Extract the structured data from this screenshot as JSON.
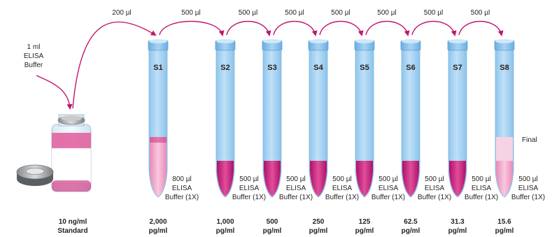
{
  "colors": {
    "arrow": "#c1166f",
    "tube_body": "#a9d4f3",
    "tube_cap": "#7ebbe6",
    "liquid": "#c81b7a",
    "liquid_light": "#ee9cc5",
    "final_pale": "#f6d3e2",
    "vial_label": "#f2b8d0"
  },
  "source": {
    "label_line1": "1 ml",
    "label_line2": "ELISA",
    "label_line3": "Buffer"
  },
  "standard": {
    "conc": "10 ng/ml",
    "name": "Standard"
  },
  "transfers": [
    "200 µl",
    "500 µl",
    "500 µl",
    "500 µl",
    "500 µl",
    "500 µl",
    "500 µl",
    "500 µl"
  ],
  "tubes": [
    {
      "label": "S1",
      "buffer_line1": "800 µl",
      "buffer_line2": "ELISA",
      "buffer_line3": "Buffer (1X)",
      "conc_value": "2,000",
      "conc_unit": "pg/ml"
    },
    {
      "label": "S2",
      "buffer_line1": "500 µl",
      "buffer_line2": "ELISA",
      "buffer_line3": "Buffer (1X)",
      "conc_value": "1,000",
      "conc_unit": "pg/ml"
    },
    {
      "label": "S3",
      "buffer_line1": "500 µl",
      "buffer_line2": "ELISA",
      "buffer_line3": "Buffer (1X)",
      "conc_value": "500",
      "conc_unit": "pg/ml"
    },
    {
      "label": "S4",
      "buffer_line1": "500 µl",
      "buffer_line2": "ELISA",
      "buffer_line3": "Buffer (1X)",
      "conc_value": "250",
      "conc_unit": "pg/ml"
    },
    {
      "label": "S5",
      "buffer_line1": "500 µl",
      "buffer_line2": "ELISA",
      "buffer_line3": "Buffer (1X)",
      "conc_value": "125",
      "conc_unit": "pg/ml"
    },
    {
      "label": "S6",
      "buffer_line1": "500 µl",
      "buffer_line2": "ELISA",
      "buffer_line3": "Buffer (1X)",
      "conc_value": "62.5",
      "conc_unit": "pg/ml"
    },
    {
      "label": "S7",
      "buffer_line1": "500 µl",
      "buffer_line2": "ELISA",
      "buffer_line3": "Buffer (1X)",
      "conc_value": "31.3",
      "conc_unit": "pg/ml"
    },
    {
      "label": "S8",
      "buffer_line1": "500 µl",
      "buffer_line2": "ELISA",
      "buffer_line3": "Buffer (1X)",
      "conc_value": "15.6",
      "conc_unit": "pg/ml"
    }
  ],
  "final_label": "Final"
}
